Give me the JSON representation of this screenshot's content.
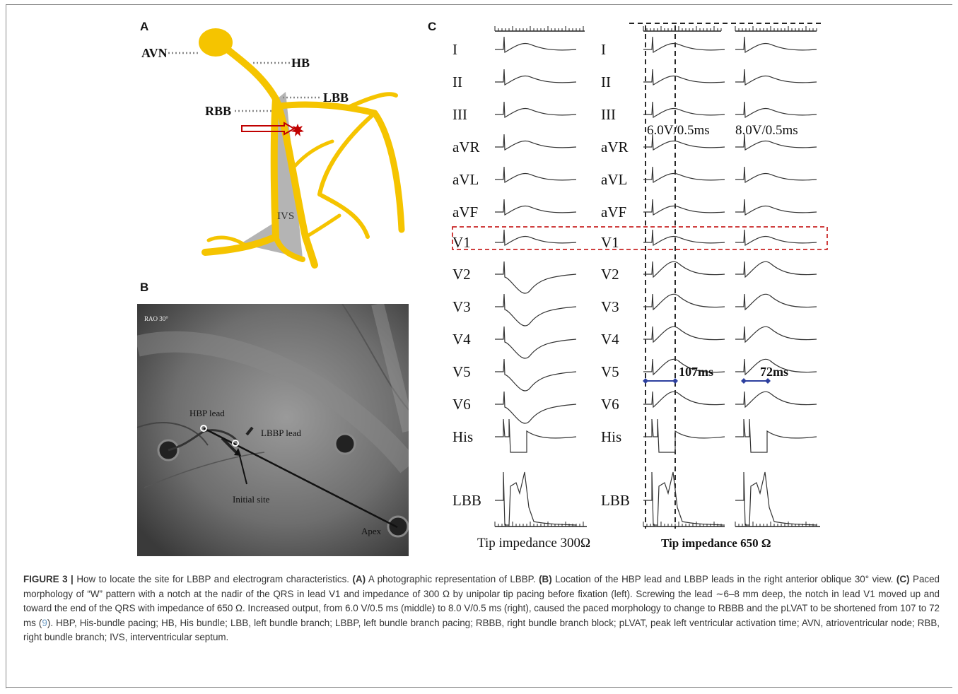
{
  "panels": {
    "a": "A",
    "b": "B",
    "c": "C"
  },
  "panel_a": {
    "labels": {
      "avn": "AVN",
      "hb": "HB",
      "lbb": "LBB",
      "rbb": "RBB",
      "ivs": "IVS"
    },
    "colors": {
      "conduction": "#f5c400",
      "septum": "#b4b4b4",
      "arrow": "#c00000"
    }
  },
  "panel_b": {
    "view": "RAO 30°",
    "hbp_lead": "HBP lead",
    "lbbp_lead": "LBBP lead",
    "initial_site": "Initial site",
    "apex": "Apex"
  },
  "panel_c": {
    "leads": [
      "I",
      "II",
      "III",
      "aVR",
      "aVL",
      "aVF",
      "V1",
      "V2",
      "V3",
      "V4",
      "V5",
      "V6",
      "His",
      "LBB"
    ],
    "output_middle": "6.0V/0.5ms",
    "output_right": "8.0V/0.5ms",
    "plvat_middle": "107ms",
    "plvat_right": "72ms",
    "impedance_left": "Tip impedance 300Ω",
    "impedance_right": "Tip impedance 650 Ω",
    "colors": {
      "highlight_box": "#c00000",
      "plvat_marker": "#2c3f9e"
    }
  },
  "caption": {
    "figure_label": "FIGURE 3 |",
    "s1": "How to locate the site for LBBP and electrogram characteristics.",
    "a_label": "(A)",
    "a_text": "A photographic representation of LBBP.",
    "b_label": "(B)",
    "b_text": "Location of the HBP lead and LBBP leads in the right anterior oblique 30° view.",
    "c_label": "(C)",
    "c_text1": "Paced morphology of “W” pattern with a notch at the nadir of the QRS in lead V1 and impedance of 300 Ω by unipolar tip pacing before fixation (left). Screwing the lead ∼6–8 mm deep, the notch in lead V1 moved up and toward the end of the QRS with impedance of 650 Ω. Increased output, from 6.0 V/0.5 ms (middle) to 8.0 V/0.5 ms (right), caused the paced morphology to change to RBBB and the pLVAT to be shortened from 107 to 72 ms (",
    "ref": "9",
    "c_text2": ").",
    "abbreviations": "HBP, His-bundle pacing; HB, His bundle; LBB, left bundle branch; LBBP, left bundle branch pacing; RBBB, right bundle branch block; pLVAT, peak left ventricular activation time; AVN, atrioventricular node; RBB, right bundle branch; IVS, interventricular septum."
  }
}
